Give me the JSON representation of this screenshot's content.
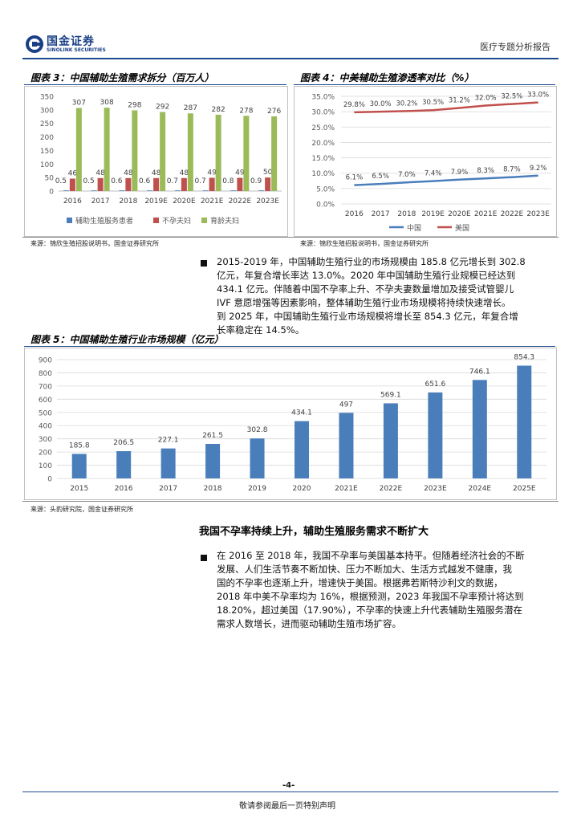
{
  "header": {
    "logo_cn": "国金证券",
    "logo_en": "SINOLINK SECURITIES",
    "report_type": "医疗专题分析报告"
  },
  "figure3": {
    "title": "图表 3：中国辅助生殖需求拆分（百万人）",
    "source": "来源：锦欣生殖招股说明书，国金证券研究所"
  },
  "figure4": {
    "title": "图表 4：中美辅助生殖渗透率对比（%）",
    "source": "来源：锦欣生殖招股说明书，国金证券研究所"
  },
  "figure5": {
    "title": "图表 5：中国辅助生殖行业市场规模（亿元）",
    "source": "来源：头豹研究院，国金证券研究所"
  },
  "paragraph1": {
    "lines": [
      "2015-2019 年，中国辅助生殖行业的市场规模由 185.8 亿元增长到 302.8",
      "亿元，年复合增长率达 13.0%。2020 年中国辅助生殖行业规模已经达到",
      "434.1 亿元。伴随着中国不孕率上升、不孕夫妻数量增加及接受试管婴儿",
      "IVF 意愿增强等因素影响，整体辅助生殖行业市场规模将持续快速增长。",
      "到 2025 年，中国辅助生殖行业市场规模将增长至 854.3 亿元，年复合增",
      "长率稳定在 14.5%。"
    ]
  },
  "section": {
    "heading": "我国不孕率持续上升，辅助生殖服务需求不断扩大"
  },
  "paragraph2": {
    "lines": [
      "在 2016 至 2018 年，我国不孕率与美国基本持平。但随着经济社会的不断",
      "发展、人们生活节奏不断加快、压力不断加大、生活方式越发不健康，我",
      "国的不孕率也逐渐上升，增速快于美国。根据弗若斯特沙利文的数据，",
      "2018 年中美不孕率均为 16%，根据预测，2023 年我国不孕率预计将达到",
      "18.20%，超过美国（17.90%），不孕率的快速上升代表辅助生殖服务潜在",
      "需求人数增长，进而驱动辅助生殖市场扩容。"
    ]
  },
  "footer": {
    "page_number": "-4-",
    "disclaimer": "敬请参阅最后一页特别声明"
  },
  "colors": {
    "blue": "#4a7ebb",
    "red": "#c0504d",
    "green": "#9bbb59",
    "navy_rule": "#1e4b8e"
  },
  "chart_data": [
    {
      "id": "figure3",
      "type": "bar",
      "categories": [
        "2016",
        "2017",
        "2018",
        "2019E",
        "2020E",
        "2021E",
        "2022E",
        "2023E"
      ],
      "series": [
        {
          "name": "辅助生殖服务患者",
          "values": [
            0.5,
            0.5,
            0.6,
            0.6,
            0.7,
            0.7,
            0.8,
            0.9
          ],
          "color": "#4a7ebb"
        },
        {
          "name": "不孕夫妇",
          "values": [
            46,
            48,
            48,
            48,
            48,
            49,
            49,
            50
          ],
          "color": "#c0504d"
        },
        {
          "name": "育龄夫妇",
          "values": [
            307,
            308,
            298,
            292,
            287,
            282,
            278,
            276
          ],
          "color": "#9bbb59"
        }
      ],
      "ylim": [
        0,
        350
      ],
      "yticks": [
        0,
        50,
        100,
        150,
        200,
        250,
        300,
        350
      ],
      "legend": "bottom",
      "grid": false
    },
    {
      "id": "figure4",
      "type": "line",
      "categories": [
        "2016",
        "2017",
        "2018",
        "2019E",
        "2020E",
        "2021E",
        "2022E",
        "2023E"
      ],
      "series": [
        {
          "name": "中国",
          "values": [
            6.1,
            6.5,
            7.0,
            7.4,
            7.9,
            8.3,
            8.7,
            9.2
          ],
          "labels": [
            "6.1%",
            "6.5%",
            "7.0%",
            "7.4%",
            "7.9%",
            "8.3%",
            "8.7%",
            "9.2%"
          ],
          "color": "#4a7ebb"
        },
        {
          "name": "美国",
          "values": [
            29.8,
            30.0,
            30.2,
            30.5,
            31.2,
            32.0,
            32.5,
            33.0
          ],
          "labels": [
            "29.8%",
            "30.0%",
            "30.2%",
            "30.5%",
            "31.2%",
            "32.0%",
            "32.5%",
            "33.0%"
          ],
          "color": "#c0504d"
        }
      ],
      "ylim": [
        0,
        35
      ],
      "yticks": [
        0,
        5,
        10,
        15,
        20,
        25,
        30,
        35
      ],
      "ytick_labels": [
        "0.0%",
        "5.0%",
        "10.0%",
        "15.0%",
        "20.0%",
        "25.0%",
        "30.0%",
        "35.0%"
      ],
      "legend": "bottom",
      "grid": true
    },
    {
      "id": "figure5",
      "type": "bar",
      "categories": [
        "2015",
        "2016",
        "2017",
        "2018",
        "2019",
        "2020",
        "2021E",
        "2022E",
        "2023E",
        "2024E",
        "2025E"
      ],
      "series": [
        {
          "name": "",
          "values": [
            185.8,
            206.5,
            227.1,
            261.5,
            302.8,
            434.1,
            497,
            569.1,
            651.6,
            746.1,
            854.3
          ],
          "labels": [
            "185.8",
            "206.5",
            "227.1",
            "261.5",
            "302.8",
            "434.1",
            "497",
            "569.1",
            "651.6",
            "746.1",
            "854.3"
          ],
          "color": "#4a7ebb"
        }
      ],
      "ylim": [
        0,
        900
      ],
      "yticks": [
        0,
        100,
        200,
        300,
        400,
        500,
        600,
        700,
        800,
        900
      ],
      "grid": true
    }
  ]
}
